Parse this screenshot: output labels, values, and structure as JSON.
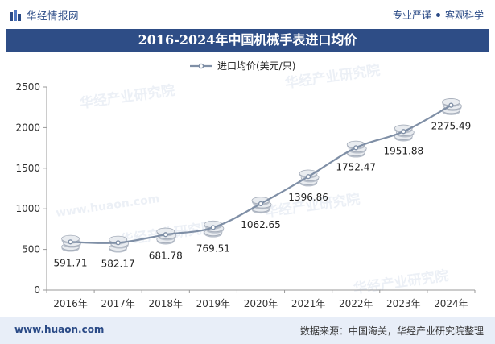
{
  "header": {
    "brand": "华经情报网",
    "slogan_left": "专业严谨",
    "slogan_right": "客观科学"
  },
  "title_bar": "2016-2024年中国机械手表进口均价",
  "watermarks": [
    "华经产业研究院",
    "www.huaon.com"
  ],
  "footer": {
    "website": "www.huaon.com",
    "source": "数据来源：中国海关，华经产业研究院整理"
  },
  "colors": {
    "title_bg": "#2e4d86",
    "line": "#7f8fa6",
    "footer_bg": "#e8eef8",
    "brand": "#2a4a86"
  },
  "chart_data": {
    "type": "line",
    "title": "2016-2024年中国机械手表进口均价",
    "categories": [
      "2016年",
      "2017年",
      "2018年",
      "2019年",
      "2020年",
      "2021年",
      "2022年",
      "2023年",
      "2024年"
    ],
    "series": [
      {
        "name": "进口均价(美元/只)",
        "values": [
          591.71,
          582.17,
          681.78,
          769.51,
          1062.65,
          1396.86,
          1752.47,
          1951.88,
          2275.49
        ],
        "labels": [
          "591.71",
          "582.17",
          "681.78",
          "769.51",
          "1062.65",
          "1396.86",
          "1752.47",
          "1951.88",
          "2275.49"
        ]
      }
    ],
    "ylim": [
      0,
      2500
    ],
    "yticks": [
      "0",
      "500",
      "1000",
      "1500",
      "2000",
      "2500"
    ],
    "ytick_values": [
      0,
      500,
      1000,
      1500,
      2000,
      2500
    ],
    "xlabel": "",
    "ylabel": "",
    "legend": "top-center",
    "grid": false
  }
}
